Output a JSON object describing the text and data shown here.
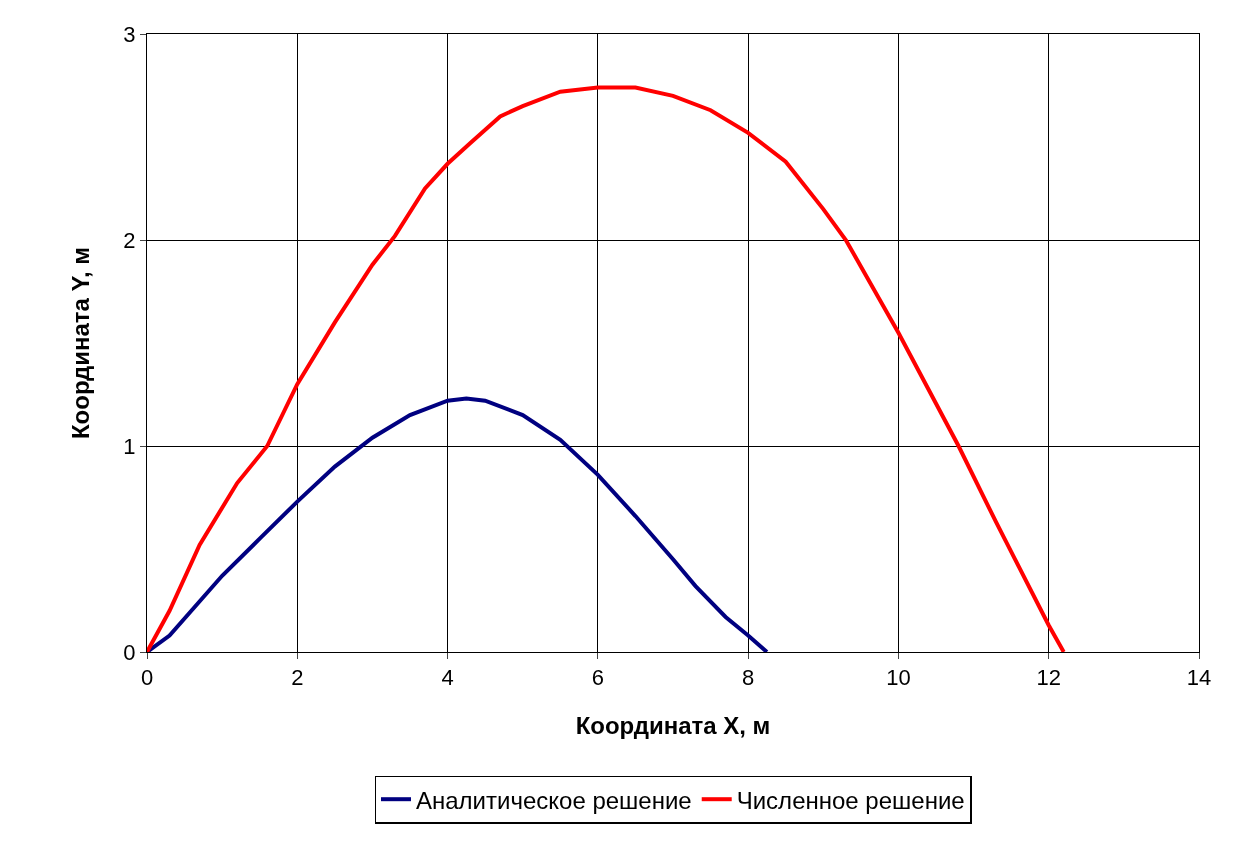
{
  "chart_data": {
    "type": "line",
    "xlabel": "Координата X, м",
    "ylabel": "Координата Y, м",
    "xlim": [
      0,
      14
    ],
    "xticks": [
      0,
      2,
      4,
      6,
      8,
      10,
      12,
      14
    ],
    "ylim": [
      0,
      3
    ],
    "yticks": [
      0,
      1,
      2,
      3
    ],
    "grid": true,
    "legend": "bottom",
    "marker": "none",
    "line_style": "solid",
    "series": [
      {
        "name": "Аналитическое решение",
        "color": "#000080",
        "x": [
          0,
          0.3,
          1,
          1.5,
          2,
          2.5,
          3,
          3.5,
          4,
          4.25,
          4.5,
          5,
          5.5,
          6,
          6.5,
          7,
          7.3,
          7.7,
          8,
          8.25
        ],
        "values": [
          0,
          0.08,
          0.37,
          0.55,
          0.73,
          0.9,
          1.04,
          1.15,
          1.22,
          1.23,
          1.22,
          1.15,
          1.03,
          0.86,
          0.66,
          0.45,
          0.32,
          0.17,
          0.08,
          0
        ]
      },
      {
        "name": "Численное решение",
        "color": "#ff0000",
        "x": [
          0,
          0.3,
          0.7,
          1.2,
          1.6,
          2,
          2.5,
          3,
          3.3,
          3.7,
          4,
          4.3,
          4.7,
          5,
          5.5,
          6,
          6.5,
          7,
          7.5,
          8,
          8.5,
          9,
          9.3,
          10,
          10.8,
          11.3,
          12,
          12.2
        ],
        "values": [
          0,
          0.2,
          0.52,
          0.82,
          1.0,
          1.3,
          1.6,
          1.88,
          2.02,
          2.25,
          2.37,
          2.47,
          2.6,
          2.65,
          2.72,
          2.74,
          2.74,
          2.7,
          2.63,
          2.52,
          2.38,
          2.15,
          2.0,
          1.55,
          1.0,
          0.63,
          0.13,
          0
        ]
      }
    ]
  }
}
